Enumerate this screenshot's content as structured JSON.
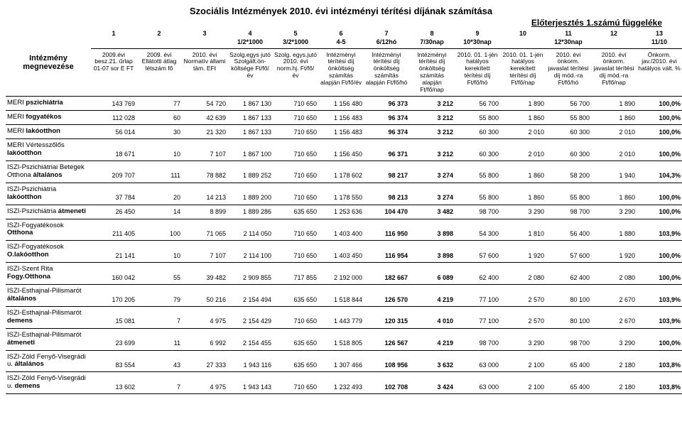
{
  "title": "Szociális Intézmények 2010. évi intézményi térítési díjának számítása",
  "subtitle": "Előterjesztés 1.számú függeléke",
  "corner_label": "Intézmény megnevezése",
  "col_nums": [
    "1",
    "2",
    "3",
    "4",
    "5",
    "6",
    "7",
    "8",
    "9",
    "10",
    "11",
    "12",
    "13"
  ],
  "col_subs": [
    "",
    "",
    "",
    "1/2*1000",
    "3/2*1000",
    "4-5",
    "6/12hó",
    "7/30nap",
    "10*30nap",
    "",
    "12*30nap",
    "",
    "11/10"
  ],
  "col_headers": [
    "2009.évi besz.21. űrlap 01-07 sor E FT",
    "2009. évi Ellátotti átlag létszám fő",
    "2010. évi Normatív állami tám. EFt",
    "Szolg.egys jutó Szolgált.ön-költsége Ft/fő/év",
    "Szolg. egys.jutó 2010. évi norm.hj. Ft/fő/év",
    "Intézményi térítési díj önköltség számítás alapján Ft/fő/év",
    "Intézményi térítési díj önköltség számítás alapján Ft/fő/hó",
    "Intézményi térítési díj önköltség számítás alapján Ft/fő/nap",
    "2010. 01. 1-jén hatályos kerekített térítési díj Ft/fő/hó",
    "2010. 01. 1-jén hatályos kerekített térítési díj Ft/fő/nap",
    "2010. évi önkorm. javaslat térítési díj mód.-ra Ft/fő/hó",
    "2010. évi önkorm. javaslat térítési díj mód.-ra Ft/fő/nap",
    "Önkorm. jav./2010. évi hatályos vált. %"
  ],
  "bold_cols": [
    7,
    8,
    13
  ],
  "rows": [
    {
      "name": "MERI pszichiátria",
      "vals": [
        "143 769",
        "77",
        "54 720",
        "1 867 130",
        "710 650",
        "1 156 480",
        "96 373",
        "3 212",
        "56 700",
        "1 890",
        "56 700",
        "1 890",
        "100,0%"
      ]
    },
    {
      "name": "MERI fogyatékos",
      "vals": [
        "112 028",
        "60",
        "42 639",
        "1 867 133",
        "710 650",
        "1 156 483",
        "96 374",
        "3 212",
        "55 800",
        "1 860",
        "55 800",
        "1 860",
        "100,0%"
      ]
    },
    {
      "name": "MERI lakóotthon",
      "vals": [
        "56 014",
        "30",
        "21 320",
        "1 867 133",
        "710 650",
        "1 156 483",
        "96 374",
        "3 212",
        "60 300",
        "2 010",
        "60 300",
        "2 010",
        "100,0%"
      ]
    },
    {
      "name": "MERI Vértesszőlős lakóotthon",
      "vals": [
        "18 671",
        "10",
        "7 107",
        "1 867 100",
        "710 650",
        "1 156 450",
        "96 371",
        "3 212",
        "60 300",
        "2 010",
        "60 300",
        "2 010",
        "100,0%"
      ]
    },
    {
      "name": "ISZI-Pszichiátriai Betegek Otthona általános",
      "vals": [
        "209 707",
        "111",
        "78 882",
        "1 889 252",
        "710 650",
        "1 178 602",
        "98 217",
        "3 274",
        "55 800",
        "1 860",
        "58 200",
        "1 940",
        "104,3%"
      ]
    },
    {
      "name": "ISZI-Pszichiátria lakóotthon",
      "vals": [
        "37 784",
        "20",
        "14 213",
        "1 889 200",
        "710 650",
        "1 178 550",
        "98 213",
        "3 274",
        "55 800",
        "1 860",
        "55 800",
        "1 860",
        "100,0%"
      ]
    },
    {
      "name": "ISZI-Pszichiátria átmeneti",
      "vals": [
        "26 450",
        "14",
        "8 899",
        "1 889 286",
        "635 650",
        "1 253 636",
        "104 470",
        "3 482",
        "98 700",
        "3 290",
        "98 700",
        "3 290",
        "100,0%"
      ]
    },
    {
      "name": "ISZI-Fogyatékosok Otthona",
      "vals": [
        "211 405",
        "100",
        "71 065",
        "2 114 050",
        "710 650",
        "1 403 400",
        "116 950",
        "3 898",
        "54 300",
        "1 810",
        "56 400",
        "1 880",
        "103,9%"
      ]
    },
    {
      "name": "ISZI-Fogyatékosok O.lakóotthon",
      "vals": [
        "21 141",
        "10",
        "7 107",
        "2 114 100",
        "710 650",
        "1 403 450",
        "116 954",
        "3 898",
        "57 600",
        "1 920",
        "57 600",
        "1 920",
        "100,0%"
      ]
    },
    {
      "name": "ISZI-Szent Rita Fogy.Otthona",
      "vals": [
        "160 042",
        "55",
        "39 482",
        "2 909 855",
        "717 855",
        "2 192 000",
        "182 667",
        "6 089",
        "62 400",
        "2 080",
        "62 400",
        "2 080",
        "100,0%"
      ]
    },
    {
      "name": "ISZI-Esthajnal-Pilismarót általános",
      "vals": [
        "170 205",
        "79",
        "50 216",
        "2 154 494",
        "635 650",
        "1 518 844",
        "126 570",
        "4 219",
        "77 100",
        "2 570",
        "80 100",
        "2 670",
        "103,9%"
      ]
    },
    {
      "name": "ISZI-Esthajnal-Pilismarót demens",
      "vals": [
        "15 081",
        "7",
        "4 975",
        "2 154 429",
        "710 650",
        "1 443 779",
        "120 315",
        "4 010",
        "77 100",
        "2 570",
        "80 100",
        "2 670",
        "103,9%"
      ]
    },
    {
      "name": "ISZI-Esthajnal-Pilismarót átmeneti",
      "vals": [
        "23 699",
        "11",
        "6 992",
        "2 154 455",
        "635 650",
        "1 518 805",
        "126 567",
        "4 219",
        "98 700",
        "3 290",
        "98 700",
        "3 290",
        "100,0%"
      ]
    },
    {
      "name": "ISZI-Zöld Fenyő-Visegrádi u. általános",
      "vals": [
        "83 554",
        "43",
        "27 333",
        "1 943 116",
        "635 650",
        "1 307 466",
        "108 956",
        "3 632",
        "63 000",
        "2 100",
        "65 400",
        "2 180",
        "103,8%"
      ]
    },
    {
      "name": "ISZI-Zöld Fenyő-Visegrádi u. demens",
      "vals": [
        "13 602",
        "7",
        "4 975",
        "1 943 143",
        "710 650",
        "1 232 493",
        "102 708",
        "3 424",
        "63 000",
        "2 100",
        "65 400",
        "2 180",
        "103,8%"
      ]
    }
  ]
}
